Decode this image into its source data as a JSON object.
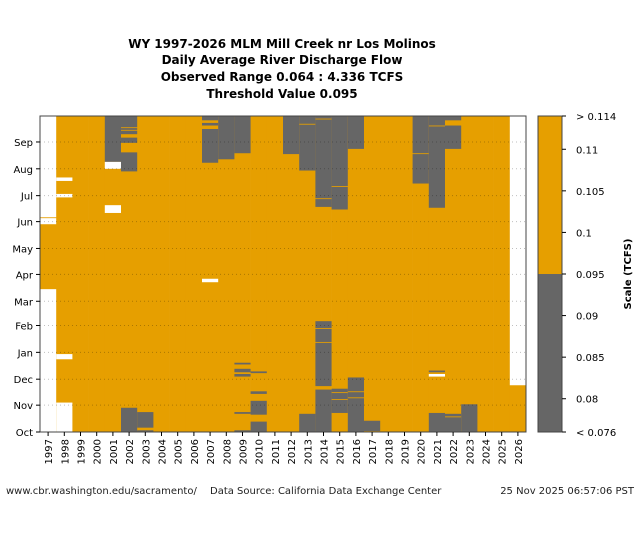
{
  "chart_data": {
    "type": "heatmap",
    "title": [
      "WY 1997-2026 MLM Mill Creek nr Los Molinos",
      "Daily Average River Discharge Flow",
      "Observed Range 0.064 : 4.336 TCFS",
      "Threshold Value 0.095"
    ],
    "xlabel": "",
    "ylabel": "",
    "years": [
      1997,
      1998,
      1999,
      2000,
      2001,
      2002,
      2003,
      2004,
      2005,
      2006,
      2007,
      2008,
      2009,
      2010,
      2011,
      2012,
      2013,
      2014,
      2015,
      2016,
      2017,
      2018,
      2019,
      2020,
      2021,
      2022,
      2023,
      2024,
      2025,
      2026
    ],
    "months": [
      "Oct",
      "Nov",
      "Dec",
      "Jan",
      "Feb",
      "Mar",
      "Apr",
      "May",
      "Jun",
      "Jul",
      "Aug",
      "Sep"
    ],
    "threshold": 0.095,
    "colors": {
      "above": "#e69f00",
      "below": "#666666",
      "missing": "#ffffff"
    },
    "colorbar": {
      "label": "Scale (TCFS)",
      "range": [
        0.076,
        0.114
      ],
      "ticks": [
        {
          "value": 0.114,
          "label": "> 0.114"
        },
        {
          "value": 0.11,
          "label": "0.11"
        },
        {
          "value": 0.105,
          "label": "0.105"
        },
        {
          "value": 0.1,
          "label": "0.1"
        },
        {
          "value": 0.095,
          "label": "0.095"
        },
        {
          "value": 0.09,
          "label": "0.09"
        },
        {
          "value": 0.085,
          "label": "0.085"
        },
        {
          "value": 0.08,
          "label": "0.08"
        },
        {
          "value": 0.076,
          "label": "< 0.076"
        }
      ]
    },
    "below_threshold": {
      "2001": [
        [
          "08-09",
          "09-30"
        ]
      ],
      "2002": [
        [
          "10-01",
          "10-28"
        ],
        [
          "07-29",
          "08-19"
        ],
        [
          "08-31",
          "09-05"
        ],
        [
          "09-10",
          "09-13"
        ],
        [
          "09-15",
          "09-16"
        ],
        [
          "09-18",
          "09-30"
        ]
      ],
      "2003": [
        [
          "10-01",
          "10-02"
        ],
        [
          "10-06",
          "10-23"
        ]
      ],
      "2007": [
        [
          "08-08",
          "09-15"
        ],
        [
          "09-20",
          "09-22"
        ],
        [
          "09-26",
          "09-30"
        ]
      ],
      "2008": [
        [
          "08-12",
          "09-30"
        ]
      ],
      "2009": [
        [
          "10-01",
          "10-02"
        ],
        [
          "10-22",
          "10-23"
        ],
        [
          "12-04",
          "12-06"
        ],
        [
          "12-09",
          "12-12"
        ],
        [
          "12-18",
          "12-19"
        ],
        [
          "08-19",
          "09-30"
        ]
      ],
      "2010": [
        [
          "10-01",
          "10-12"
        ],
        [
          "10-21",
          "11-05"
        ],
        [
          "11-14",
          "11-16"
        ],
        [
          "12-08",
          "12-09"
        ]
      ],
      "2012": [
        [
          "08-18",
          "09-30"
        ]
      ],
      "2013": [
        [
          "10-01",
          "10-21"
        ],
        [
          "07-30",
          "09-20"
        ],
        [
          "09-22",
          "09-30"
        ]
      ],
      "2014": [
        [
          "10-01",
          "11-18"
        ],
        [
          "11-23",
          "01-11"
        ],
        [
          "01-13",
          "01-27"
        ],
        [
          "01-29",
          "02-05"
        ],
        [
          "06-18",
          "06-26"
        ],
        [
          "06-28",
          "09-26"
        ],
        [
          "09-28",
          "09-30"
        ]
      ],
      "2015": [
        [
          "10-23",
          "11-06"
        ],
        [
          "11-08",
          "11-14"
        ],
        [
          "11-16",
          "11-19"
        ],
        [
          "06-15",
          "07-10"
        ],
        [
          "07-12",
          "09-30"
        ]
      ],
      "2016": [
        [
          "10-01",
          "11-08"
        ],
        [
          "11-10",
          "11-15"
        ],
        [
          "11-17",
          "12-02"
        ],
        [
          "08-24",
          "09-30"
        ]
      ],
      "2017": [
        [
          "10-02",
          "10-13"
        ]
      ],
      "2020": [
        [
          "07-15",
          "08-17"
        ],
        [
          "08-19",
          "09-30"
        ]
      ],
      "2021": [
        [
          "10-01",
          "10-22"
        ],
        [
          "12-09",
          "12-10"
        ],
        [
          "06-17",
          "09-18"
        ],
        [
          "09-20",
          "09-30"
        ]
      ],
      "2022": [
        [
          "10-01",
          "10-17"
        ],
        [
          "10-19",
          "10-21"
        ],
        [
          "08-24",
          "09-19"
        ],
        [
          "09-26",
          "09-30"
        ]
      ],
      "2023": [
        [
          "10-01",
          "11-01"
        ]
      ]
    },
    "missing": {
      "1997": [
        [
          "10-01",
          "03-14"
        ],
        [
          "05-29",
          "06-04"
        ],
        [
          "06-06",
          "09-30"
        ]
      ],
      "1998": [
        [
          "10-01",
          "11-03"
        ],
        [
          "12-24",
          "12-29"
        ],
        [
          "06-29",
          "07-02"
        ],
        [
          "07-18",
          "07-21"
        ]
      ],
      "2001": [
        [
          "06-11",
          "06-19"
        ],
        [
          "08-01",
          "08-08"
        ]
      ],
      "2007": [
        [
          "03-23",
          "03-26"
        ]
      ],
      "2021": [
        [
          "12-04",
          "12-06"
        ]
      ],
      "2026": [
        [
          "11-24",
          "09-30"
        ]
      ]
    },
    "grid": true
  },
  "footer": {
    "url": "www.cbr.washington.edu/sacramento/",
    "source": "Data Source: California Data Exchange Center",
    "timestamp": "25 Nov 2025 06:57:06 PST"
  }
}
